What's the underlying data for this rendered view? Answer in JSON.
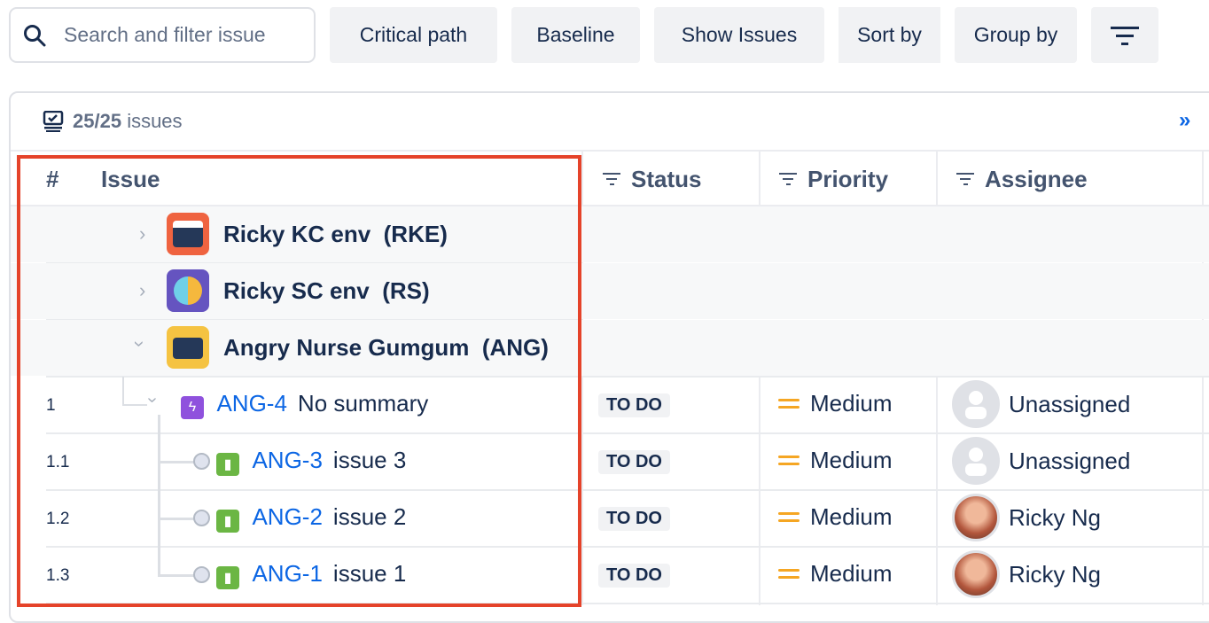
{
  "toolbar": {
    "search_placeholder": "Search and filter issue",
    "search_icon": "search-icon",
    "buttons": [
      "Critical path",
      "Baseline",
      "Show Issues",
      "Sort by",
      "Group by"
    ],
    "filter_icon": "filter-icon"
  },
  "summary": {
    "count": "25/25",
    "label": "issues",
    "expand_icon": "double-chevron-right-icon",
    "expand_glyph": "»"
  },
  "columns": {
    "num": "#",
    "issue": "Issue",
    "status": "Status",
    "priority": "Priority",
    "assignee": "Assignee"
  },
  "groups": [
    {
      "name": "Ricky KC env",
      "key": "(RKE)",
      "expanded": false,
      "color": "#ef6340"
    },
    {
      "name": "Ricky SC env",
      "key": "(RS)",
      "expanded": false,
      "color": "#6554c0"
    },
    {
      "name": "Angry Nurse Gumgum",
      "key": "(ANG)",
      "expanded": true,
      "color": "#f5c342"
    }
  ],
  "rows": [
    {
      "num": "1",
      "key": "ANG-4",
      "summary": "No summary",
      "type": "epic",
      "status": "TO DO",
      "priority": "Medium",
      "assignee": "Unassigned"
    },
    {
      "num": "1.1",
      "key": "ANG-3",
      "summary": "issue 3",
      "type": "story",
      "status": "TO DO",
      "priority": "Medium",
      "assignee": "Unassigned"
    },
    {
      "num": "1.2",
      "key": "ANG-2",
      "summary": "issue 2",
      "type": "story",
      "status": "TO DO",
      "priority": "Medium",
      "assignee": "Ricky Ng"
    },
    {
      "num": "1.3",
      "key": "ANG-1",
      "summary": "issue 1",
      "type": "story",
      "status": "TO DO",
      "priority": "Medium",
      "assignee": "Ricky Ng"
    }
  ],
  "colors": {
    "link": "#0c66e4",
    "highlight": "#e5432a",
    "priority_medium": "#f5a623",
    "epic": "#8f51dd",
    "story": "#6bb644"
  }
}
